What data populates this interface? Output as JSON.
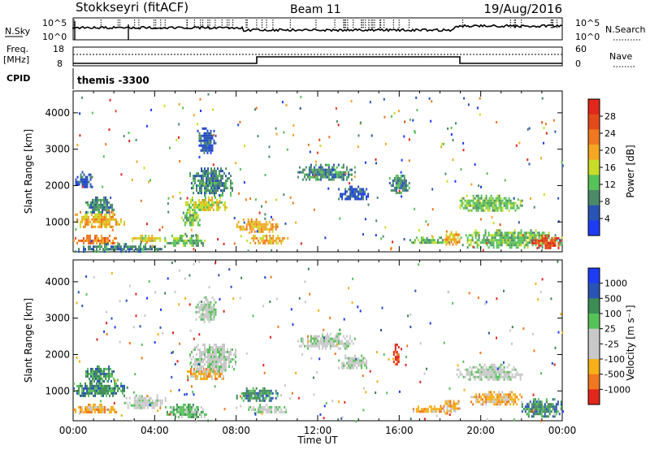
{
  "header": {
    "radar": "Stokkseyri (fitACF)",
    "beam": "Beam 11",
    "date": "19/Aug/2016"
  },
  "labels": {
    "nsky": "N.Sky",
    "nsky_tick_hi": "10^5",
    "nsky_tick_lo": "10^0",
    "nsearch": "N.Search",
    "freq": "Freq.",
    "freq_unit": "[MHz]",
    "freq_tick_hi": "18",
    "freq_tick_lo": "8",
    "nave": "Nave",
    "nave_tick_hi": "60",
    "nave_tick_lo": "0",
    "cpid": "CPID",
    "cpid_value": "themis -3300",
    "ylabel": "Slant Range [km]",
    "xlabel": "Time UT"
  },
  "colors": {
    "power": [
      "#1f3cf5",
      "#2a54b4",
      "#4c8a6a",
      "#58c25a",
      "#c8dd28",
      "#f5a623",
      "#f07820",
      "#e24a1c",
      "#e1261c"
    ],
    "velocity": [
      "#e1261c",
      "#f07820",
      "#f5b01a",
      "#c9c9c9",
      "#c9c9c9",
      "#58c25a",
      "#3d8b55",
      "#2a54b4",
      "#1f3cf5"
    ]
  },
  "chart_data": [
    {
      "type": "heatmap",
      "name": "power",
      "x_ticks": [
        "00:00",
        "04:00",
        "08:00",
        "12:00",
        "16:00",
        "20:00",
        "00:00"
      ],
      "y_ticks": [
        1000,
        2000,
        3000,
        4000
      ],
      "ylim": [
        180,
        4600
      ],
      "xlim_hours": [
        0,
        24
      ],
      "colorbar": {
        "label": "Power [dB]",
        "ticks": [
          "28",
          "24",
          "20",
          "16",
          "12",
          "8",
          "4"
        ]
      },
      "regions": [
        {
          "t0": 0.0,
          "t1": 2.2,
          "r0": 400,
          "r1": 650,
          "level": 6
        },
        {
          "t0": 0.0,
          "t1": 2.5,
          "r0": 850,
          "r1": 1300,
          "level": 5
        },
        {
          "t0": 0.1,
          "t1": 0.9,
          "r0": 1900,
          "r1": 2400,
          "level": 1
        },
        {
          "t0": 0.6,
          "t1": 2.0,
          "r0": 1250,
          "r1": 1700,
          "level": 2
        },
        {
          "t0": 0.0,
          "t1": 4.5,
          "r0": 200,
          "r1": 420,
          "level": 2
        },
        {
          "t0": 2.8,
          "t1": 4.5,
          "r0": 450,
          "r1": 650,
          "level": 4
        },
        {
          "t0": 4.5,
          "t1": 6.5,
          "r0": 350,
          "r1": 650,
          "level": 3
        },
        {
          "t0": 5.5,
          "t1": 7.5,
          "r0": 1300,
          "r1": 1700,
          "level": 4
        },
        {
          "t0": 5.3,
          "t1": 6.2,
          "r0": 900,
          "r1": 1350,
          "level": 3
        },
        {
          "t0": 5.7,
          "t1": 7.8,
          "r0": 1700,
          "r1": 2500,
          "level": 2
        },
        {
          "t0": 6.0,
          "t1": 7.0,
          "r0": 2900,
          "r1": 3600,
          "level": 1
        },
        {
          "t0": 8.0,
          "t1": 10.0,
          "r0": 750,
          "r1": 1100,
          "level": 5
        },
        {
          "t0": 8.5,
          "t1": 10.5,
          "r0": 400,
          "r1": 650,
          "level": 5
        },
        {
          "t0": 11.0,
          "t1": 13.8,
          "r0": 2150,
          "r1": 2600,
          "level": 2
        },
        {
          "t0": 13.0,
          "t1": 14.5,
          "r0": 1600,
          "r1": 2000,
          "level": 1
        },
        {
          "t0": 15.5,
          "t1": 16.5,
          "r0": 1800,
          "r1": 2300,
          "level": 2
        },
        {
          "t0": 16.5,
          "t1": 18.5,
          "r0": 400,
          "r1": 600,
          "level": 3
        },
        {
          "t0": 18.2,
          "t1": 19.0,
          "r0": 400,
          "r1": 750,
          "level": 5
        },
        {
          "t0": 18.8,
          "t1": 22.0,
          "r0": 1300,
          "r1": 1750,
          "level": 3
        },
        {
          "t0": 19.0,
          "t1": 24.0,
          "r0": 300,
          "r1": 800,
          "level": 3
        },
        {
          "t0": 22.5,
          "t1": 24.0,
          "r0": 300,
          "r1": 650,
          "level": 7
        }
      ]
    },
    {
      "type": "heatmap",
      "name": "velocity",
      "x_ticks": [
        "00:00",
        "04:00",
        "08:00",
        "12:00",
        "16:00",
        "20:00",
        "00:00"
      ],
      "y_ticks": [
        1000,
        2000,
        3000,
        4000
      ],
      "ylim": [
        180,
        4600
      ],
      "xlim_hours": [
        0,
        24
      ],
      "colorbar": {
        "label": "Velocity [m s⁻¹]",
        "ticks": [
          "1000",
          "500",
          "100",
          "25",
          "-25",
          "-100",
          "-500",
          "-1000"
        ]
      },
      "regions": [
        {
          "t0": 0.0,
          "t1": 2.2,
          "r0": 400,
          "r1": 650,
          "level": 2
        },
        {
          "t0": 0.0,
          "t1": 2.5,
          "r0": 850,
          "r1": 1300,
          "level": 6
        },
        {
          "t0": 0.6,
          "t1": 2.0,
          "r0": 1250,
          "r1": 1700,
          "level": 6
        },
        {
          "t0": 2.5,
          "t1": 4.5,
          "r0": 500,
          "r1": 900,
          "level": 4
        },
        {
          "t0": 4.5,
          "t1": 6.5,
          "r0": 250,
          "r1": 650,
          "level": 5
        },
        {
          "t0": 5.5,
          "t1": 7.5,
          "r0": 1300,
          "r1": 1700,
          "level": 2
        },
        {
          "t0": 5.7,
          "t1": 8.0,
          "r0": 1500,
          "r1": 2300,
          "level": 4
        },
        {
          "t0": 6.0,
          "t1": 7.0,
          "r0": 2900,
          "r1": 3600,
          "level": 4
        },
        {
          "t0": 8.0,
          "t1": 10.0,
          "r0": 750,
          "r1": 1100,
          "level": 6
        },
        {
          "t0": 8.5,
          "t1": 10.5,
          "r0": 400,
          "r1": 650,
          "level": 4
        },
        {
          "t0": 11.0,
          "t1": 13.8,
          "r0": 2150,
          "r1": 2600,
          "level": 4
        },
        {
          "t0": 13.0,
          "t1": 14.5,
          "r0": 1600,
          "r1": 2000,
          "level": 4
        },
        {
          "t0": 15.7,
          "t1": 16.0,
          "r0": 1700,
          "r1": 2300,
          "level": 0
        },
        {
          "t0": 16.5,
          "t1": 18.5,
          "r0": 400,
          "r1": 600,
          "level": 2
        },
        {
          "t0": 18.0,
          "t1": 19.0,
          "r0": 400,
          "r1": 750,
          "level": 2
        },
        {
          "t0": 18.8,
          "t1": 22.0,
          "r0": 1300,
          "r1": 1750,
          "level": 4
        },
        {
          "t0": 19.5,
          "t1": 22.0,
          "r0": 600,
          "r1": 1000,
          "level": 2
        },
        {
          "t0": 22.0,
          "t1": 24.0,
          "r0": 300,
          "r1": 800,
          "level": 6
        }
      ]
    }
  ]
}
